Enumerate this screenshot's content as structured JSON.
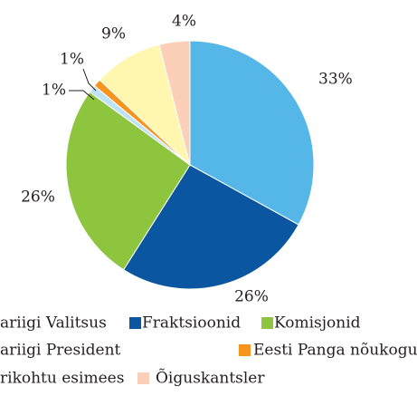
{
  "chart_data": {
    "type": "pie",
    "categories": [
      "ariigi Valitsus",
      "Fraktsioonid",
      "Komisjonid",
      "ariigi President",
      "Eesti Panga nõukogu esimees",
      "rikohtu esimees",
      "Õiguskantsler"
    ],
    "values": [
      33,
      26,
      26,
      1,
      1,
      9,
      4
    ],
    "value_labels": [
      "33%",
      "26%",
      "26%",
      "1%",
      "1%",
      "9%",
      "4%"
    ],
    "colors": [
      "#55b6e8",
      "#0b56a0",
      "#8dc53e",
      "#bfe3f6",
      "#f7941d",
      "#fff6b0",
      "#fbcfb8"
    ]
  }
}
